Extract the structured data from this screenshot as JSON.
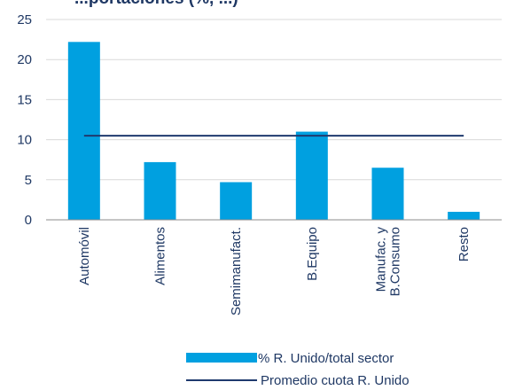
{
  "chart_data": {
    "type": "bar",
    "title": "...portaciones (%, ...)",
    "categories": [
      "Automóvil",
      "Alimentos",
      "Semimanufact.",
      "B.Equipo",
      "Manufac. y B.Consumo",
      "Resto"
    ],
    "category_lines": [
      [
        "Automóvil"
      ],
      [
        "Alimentos"
      ],
      [
        "Semimanufact."
      ],
      [
        "B.Equipo"
      ],
      [
        "Manufac. y",
        "B.Consumo"
      ],
      [
        "Resto"
      ]
    ],
    "series": [
      {
        "name": "% R. Unido/total sector",
        "type": "bar",
        "color": "#00a0e0",
        "values": [
          22.2,
          7.2,
          4.7,
          11.0,
          6.5,
          1.0
        ]
      },
      {
        "name": "Promedio cuota R. Unido",
        "type": "line",
        "color": "#1f3a6e",
        "values": [
          10.5,
          10.5,
          10.5,
          10.5,
          10.5,
          10.5
        ]
      }
    ],
    "ylim": [
      0,
      25
    ],
    "yticks": [
      0,
      5,
      10,
      15,
      20,
      25
    ],
    "grid": true,
    "legend_position": "bottom",
    "xlabel": "",
    "ylabel": ""
  }
}
